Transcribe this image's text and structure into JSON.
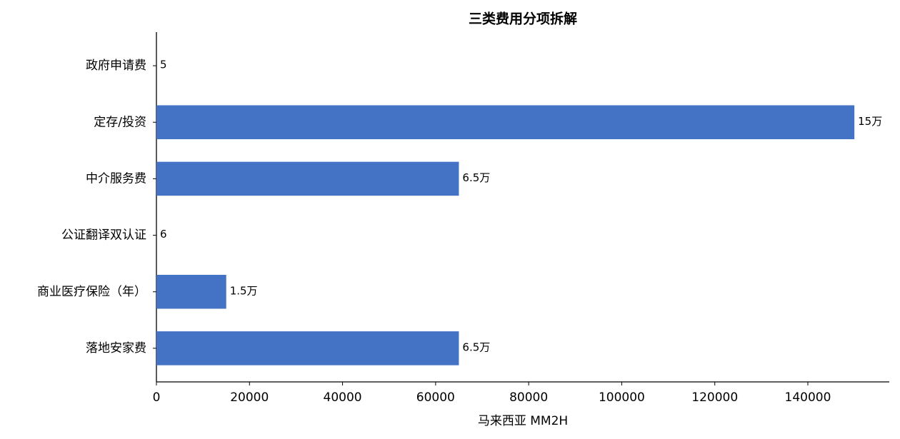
{
  "chart_data": {
    "type": "barh",
    "title": "三类费用分项拆解",
    "xlabel": "马来西亚 MM2H",
    "categories": [
      "政府申请费",
      "定存/投资",
      "中介服务费",
      "公证翻译双认证",
      "商业医疗保险（年）",
      "落地安家费"
    ],
    "values": [
      5,
      150000,
      65000,
      6,
      15000,
      65000
    ],
    "value_labels": [
      "5",
      "15万",
      "6.5万",
      "6",
      "1.5万",
      "6.5万"
    ],
    "color": "#4472c4",
    "xlim": [
      0,
      157500
    ],
    "xticks": [
      0,
      20000,
      40000,
      60000,
      80000,
      100000,
      120000,
      140000
    ]
  }
}
